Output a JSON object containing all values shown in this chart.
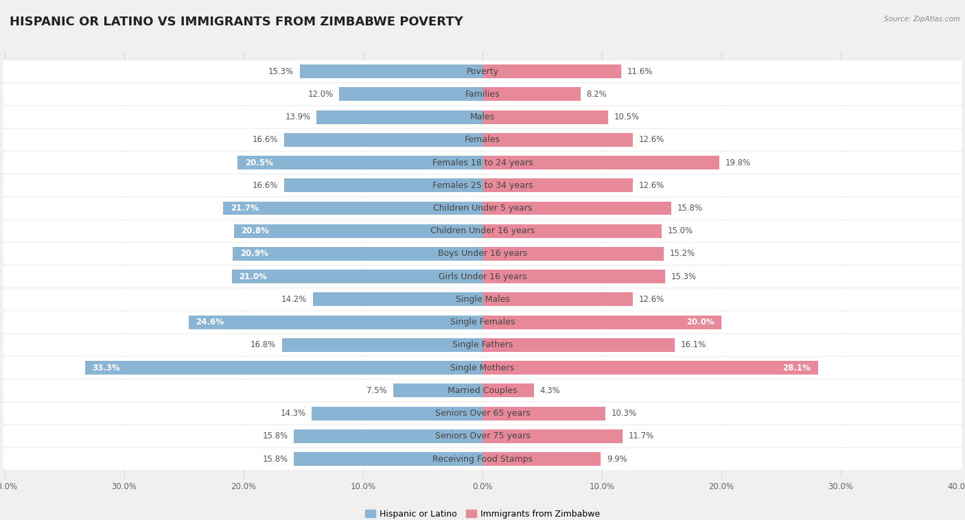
{
  "title": "HISPANIC OR LATINO VS IMMIGRANTS FROM ZIMBABWE POVERTY",
  "source": "Source: ZipAtlas.com",
  "categories": [
    "Poverty",
    "Families",
    "Males",
    "Females",
    "Females 18 to 24 years",
    "Females 25 to 34 years",
    "Children Under 5 years",
    "Children Under 16 years",
    "Boys Under 16 years",
    "Girls Under 16 years",
    "Single Males",
    "Single Females",
    "Single Fathers",
    "Single Mothers",
    "Married Couples",
    "Seniors Over 65 years",
    "Seniors Over 75 years",
    "Receiving Food Stamps"
  ],
  "hispanic_values": [
    15.3,
    12.0,
    13.9,
    16.6,
    20.5,
    16.6,
    21.7,
    20.8,
    20.9,
    21.0,
    14.2,
    24.6,
    16.8,
    33.3,
    7.5,
    14.3,
    15.8,
    15.8
  ],
  "zimbabwe_values": [
    11.6,
    8.2,
    10.5,
    12.6,
    19.8,
    12.6,
    15.8,
    15.0,
    15.2,
    15.3,
    12.6,
    20.0,
    16.1,
    28.1,
    4.3,
    10.3,
    11.7,
    9.9
  ],
  "hispanic_color": "#8ab4d3",
  "zimbabwe_color": "#e8899a",
  "axis_max": 40.0,
  "background_color": "#f0f0f0",
  "row_bg_color": "#ffffff",
  "row_stripe_color": "#e8e8e8",
  "bar_height": 0.6,
  "title_fontsize": 13,
  "label_fontsize": 9,
  "value_fontsize": 8.5,
  "legend_labels": [
    "Hispanic or Latino",
    "Immigrants from Zimbabwe"
  ],
  "hispanic_inside_threshold": 20.0,
  "zimbabwe_inside_threshold": 20.0
}
